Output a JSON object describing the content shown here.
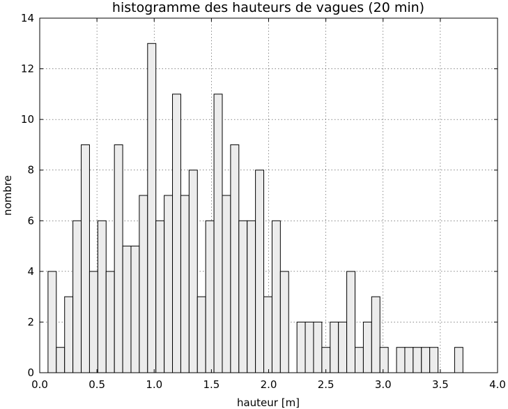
{
  "chart_data": {
    "type": "bar",
    "title": "histogramme des hauteurs de vagues (20 min)",
    "xlabel": "hauteur [m]",
    "ylabel": "nombre",
    "xlim": [
      0.0,
      4.0
    ],
    "ylim": [
      0,
      14
    ],
    "xticks": [
      "0.0",
      "0.5",
      "1.0",
      "1.5",
      "2.0",
      "2.5",
      "3.0",
      "3.5",
      "4.0"
    ],
    "yticks": [
      "0",
      "2",
      "4",
      "6",
      "8",
      "10",
      "12",
      "14"
    ],
    "grid": true,
    "bin_width": 0.0725,
    "bin_start": [
      0.0725,
      0.145,
      0.2175,
      0.29,
      0.3625,
      0.435,
      0.5075,
      0.58,
      0.6525,
      0.725,
      0.7975,
      0.87,
      0.9425,
      1.015,
      1.0875,
      1.16,
      1.2325,
      1.305,
      1.3775,
      1.45,
      1.5225,
      1.595,
      1.6675,
      1.74,
      1.8125,
      1.885,
      1.9575,
      2.03,
      2.1025,
      2.175,
      2.2475,
      2.32,
      2.3925,
      2.465,
      2.5375,
      2.61,
      2.6825,
      2.755,
      2.8275,
      2.9,
      2.9725,
      3.045,
      3.1175,
      3.19,
      3.2625,
      3.335,
      3.4075,
      3.48,
      3.5525,
      3.625
    ],
    "values": [
      4,
      1,
      3,
      6,
      9,
      4,
      6,
      4,
      9,
      5,
      5,
      7,
      13,
      6,
      7,
      11,
      7,
      8,
      3,
      6,
      11,
      7,
      9,
      6,
      6,
      8,
      3,
      6,
      4,
      0,
      2,
      2,
      2,
      1,
      2,
      2,
      4,
      1,
      2,
      3,
      1,
      0,
      1,
      1,
      1,
      1,
      1,
      0,
      0,
      1
    ]
  }
}
